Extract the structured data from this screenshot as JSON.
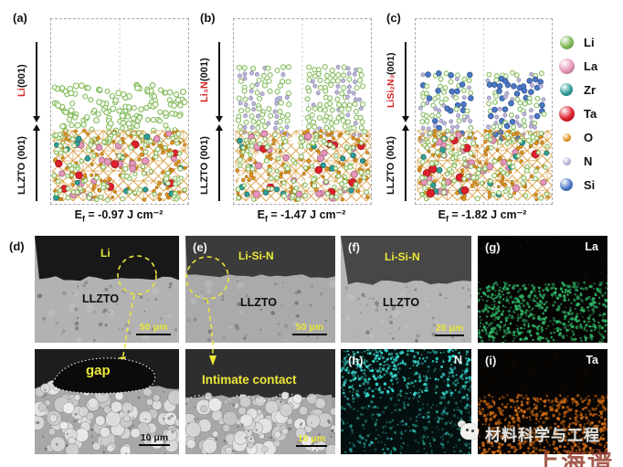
{
  "atom_colors": {
    "Li": "#7db955",
    "La": "#e794ba",
    "Zr": "#2f9f98",
    "Ta": "#df1f2d",
    "O": "#e1941e",
    "N": "#bcb6dd",
    "Si": "#4a78c8"
  },
  "bond_color": "#d4922c",
  "accent_yellow": "#ece73a",
  "panels_top": [
    {
      "label": "(a)",
      "overlayer_red": "Li",
      "overlayer_black": " (001)",
      "substrate": "LLZTO (001)",
      "caption_e": "E",
      "caption_f": "f",
      "caption_rest": " = -0.97 J cm⁻²",
      "structure": "li"
    },
    {
      "label": "(b)",
      "overlayer_red": "Li₃N",
      "overlayer_black": " (001)",
      "substrate": "LLZTO (001)",
      "caption_e": "E",
      "caption_f": "f",
      "caption_rest": " = -1.47 J cm⁻²",
      "structure": "li3n"
    },
    {
      "label": "(c)",
      "overlayer_red": "LiSi₂N₃",
      "overlayer_black": " (001)",
      "substrate": "LLZTO (001)",
      "caption_e": "E",
      "caption_f": "f",
      "caption_rest": " = -1.82 J cm⁻²",
      "structure": "lisin"
    }
  ],
  "legend": {
    "items": [
      {
        "symbol": "Li"
      },
      {
        "symbol": "La"
      },
      {
        "symbol": "Zr"
      },
      {
        "symbol": "Ta"
      },
      {
        "symbol": "O"
      },
      {
        "symbol": "N"
      },
      {
        "symbol": "Si"
      }
    ]
  },
  "panels_bottom": {
    "d_label": "(d)",
    "d1": {
      "region_top": "Li",
      "region_bottom": "LLZTO",
      "scale": "50 μm"
    },
    "d2": {
      "annotation": "gap",
      "scale": "10 μm"
    },
    "e1": {
      "panel": "(e)",
      "region_top": "Li-Si-N",
      "region_bottom": "LLZTO",
      "scale": "50 μm"
    },
    "e2": {
      "annotation": "Intimate contact",
      "scale": "10 μm"
    },
    "f1": {
      "panel": "(f)",
      "region_top": "Li-Si-N",
      "region_bottom": "LLZTO",
      "scale": "20 μm"
    },
    "g": {
      "panel": "(g)",
      "element": "La",
      "color": "#2eb567"
    },
    "h": {
      "panel": "(h)",
      "element": "N",
      "color": "#38d8cf"
    },
    "i": {
      "panel": "(i)",
      "element": "Ta",
      "color": "#cf6a12"
    }
  },
  "watermark": {
    "brand": "材料科学与工程",
    "sub": "上海谱"
  }
}
